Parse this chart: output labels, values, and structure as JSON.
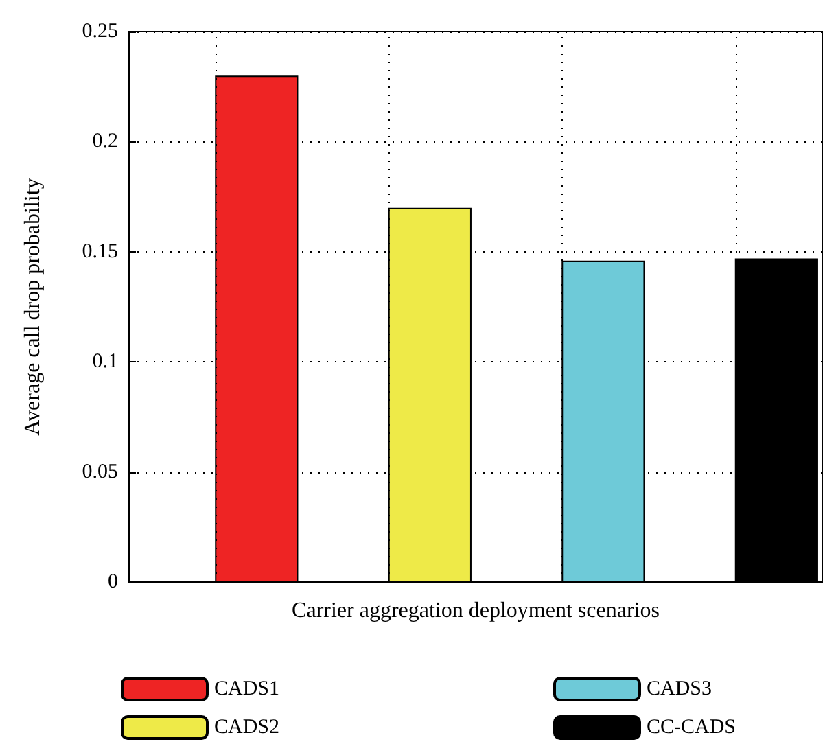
{
  "chart_data": {
    "type": "bar",
    "xlabel": "Carrier aggregation deployment scenarios",
    "ylabel": "Average call drop probability",
    "categories": [
      null,
      null,
      null,
      null
    ],
    "series": [
      {
        "name": "CADS1",
        "color": "#ee2424",
        "values": [
          0.23,
          null,
          null,
          null
        ]
      },
      {
        "name": "CADS2",
        "color": "#eeea48",
        "values": [
          null,
          0.17,
          null,
          null
        ]
      },
      {
        "name": "CADS3",
        "color": "#6ecad8",
        "values": [
          null,
          null,
          0.146,
          null
        ]
      },
      {
        "name": "CC-CADS",
        "color": "#000000",
        "values": [
          null,
          null,
          null,
          0.147
        ]
      }
    ],
    "ylim": [
      0,
      0.25
    ],
    "yticks": [
      0,
      0.05,
      0.1,
      0.15,
      0.2,
      0.25
    ],
    "grid": true,
    "legend": "bottom"
  }
}
